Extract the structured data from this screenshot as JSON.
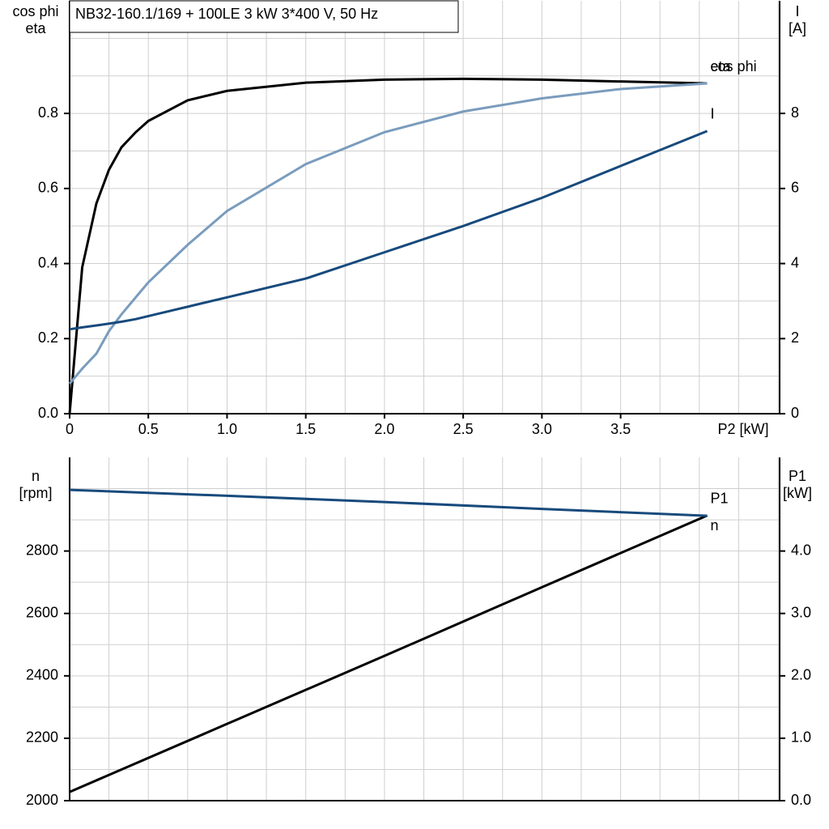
{
  "chart_data": [
    {
      "type": "line",
      "title": "NB32-160.1/169 + 100LE   3 kW   3*400 V, 50 Hz",
      "ylabel": [
        "cos phi",
        "eta"
      ],
      "y2label": [
        "I",
        "[A]"
      ],
      "xlabel": "P2 [kW]",
      "x": [
        0,
        0.08,
        0.17,
        0.25,
        0.33,
        0.42,
        0.5,
        0.75,
        1,
        1.5,
        2,
        2.5,
        3,
        3.5,
        4.05
      ],
      "series": [
        {
          "name": "eta",
          "color": "#000000",
          "label_side": "above",
          "values": [
            0,
            0.39,
            0.56,
            0.65,
            0.71,
            0.75,
            0.78,
            0.835,
            0.86,
            0.882,
            0.89,
            0.892,
            0.89,
            0.885,
            0.88
          ]
        },
        {
          "name": "cos phi",
          "color": "#7a9cbd",
          "label_side": "above",
          "values": [
            0.08,
            0.12,
            0.16,
            0.22,
            0.265,
            0.31,
            0.35,
            0.45,
            0.54,
            0.665,
            0.75,
            0.805,
            0.84,
            0.865,
            0.88
          ]
        },
        {
          "name": "I",
          "color": "#174a7c",
          "axis": "y2",
          "label_side": "above",
          "values": [
            2.25,
            2.3,
            2.35,
            2.4,
            2.45,
            2.52,
            2.6,
            2.85,
            3.1,
            3.6,
            4.3,
            5.0,
            5.75,
            6.6,
            7.53
          ]
        }
      ],
      "xlim": [
        0,
        4.51
      ],
      "ylim": [
        0,
        1.1
      ],
      "y2lim": [
        0,
        11
      ],
      "xticks": [
        0,
        0.5,
        {
          "value": 1,
          "label": "1.0"
        },
        1.5,
        {
          "value": 2,
          "label": "2.0"
        },
        2.5,
        {
          "value": 3,
          "label": "3.0"
        },
        3.5
      ],
      "yticks": [
        {
          "value": 0,
          "label": "0.0"
        },
        0.2,
        0.4,
        0.6,
        0.8
      ],
      "y2ticks": [
        0,
        2,
        4,
        6,
        8
      ],
      "xgrid": [
        0.25,
        0.5,
        0.75,
        1,
        1.25,
        1.5,
        1.75,
        2,
        2.25,
        2.5,
        2.75,
        3,
        3.25,
        3.5,
        3.75,
        4,
        4.25,
        4.5
      ],
      "ygrid": [
        0.1,
        0.2,
        0.3,
        0.4,
        0.5,
        0.6,
        0.7,
        0.8,
        0.9,
        1.0
      ]
    },
    {
      "type": "line",
      "ylabel": [
        "n",
        "[rpm]"
      ],
      "y2label": [
        "P1",
        "[kW]"
      ],
      "x": [
        0,
        1,
        2,
        3,
        4.05
      ],
      "series": [
        {
          "name": "P1",
          "color": "#000000",
          "axis": "y2",
          "label_side": "above",
          "values": [
            0.14,
            1.23,
            2.32,
            3.42,
            4.57
          ]
        },
        {
          "name": "n",
          "color": "#174a7c",
          "label_side": "below",
          "values": [
            2996,
            2977,
            2957,
            2935,
            2913
          ]
        }
      ],
      "xlim": [
        0,
        4.51
      ],
      "ylim": [
        2000,
        3100
      ],
      "y2lim": [
        0,
        5.5
      ],
      "yticks": [
        2000,
        2200,
        2400,
        2600,
        2800
      ],
      "y2ticks": [
        {
          "value": 0,
          "label": "0.0"
        },
        {
          "value": 1,
          "label": "1.0"
        },
        {
          "value": 2,
          "label": "2.0"
        },
        {
          "value": 3,
          "label": "3.0"
        },
        {
          "value": 4,
          "label": "4.0"
        }
      ],
      "xgrid": [
        0.25,
        0.5,
        0.75,
        1,
        1.25,
        1.5,
        1.75,
        2,
        2.25,
        2.5,
        2.75,
        3,
        3.25,
        3.5,
        3.75,
        4,
        4.25,
        4.5
      ],
      "ygrid": [
        2100,
        2200,
        2300,
        2400,
        2500,
        2600,
        2700,
        2800,
        2900,
        3000
      ]
    }
  ]
}
